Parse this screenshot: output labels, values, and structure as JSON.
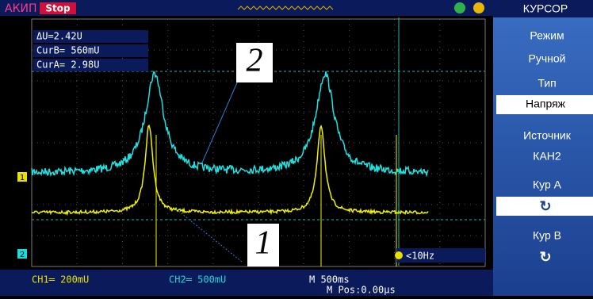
{
  "header": {
    "brand": "АКИП",
    "status": "Stop"
  },
  "readouts": {
    "delta": "ΔU=2.42U",
    "cur_b": "CurB= 560mU",
    "cur_a": "CurA= 2.98U"
  },
  "annotations": [
    "2",
    "1"
  ],
  "channel_markers": [
    "1",
    "2"
  ],
  "trigger": "<10Hz",
  "footer": {
    "ch1": "CH1═ 200mU",
    "ch2": "CH2═ 500mU",
    "timebase": "M 500ms",
    "position": "M Pos:0.00µs"
  },
  "menu": {
    "title": "КУРСОР",
    "items": [
      {
        "label": "Режим",
        "value": "Ручной"
      },
      {
        "label": "Тип",
        "value": "Напряж"
      },
      {
        "label": "Источник",
        "value": "КАН2"
      },
      {
        "label": "Кур A"
      },
      {
        "label": "Кур B"
      }
    ]
  }
}
